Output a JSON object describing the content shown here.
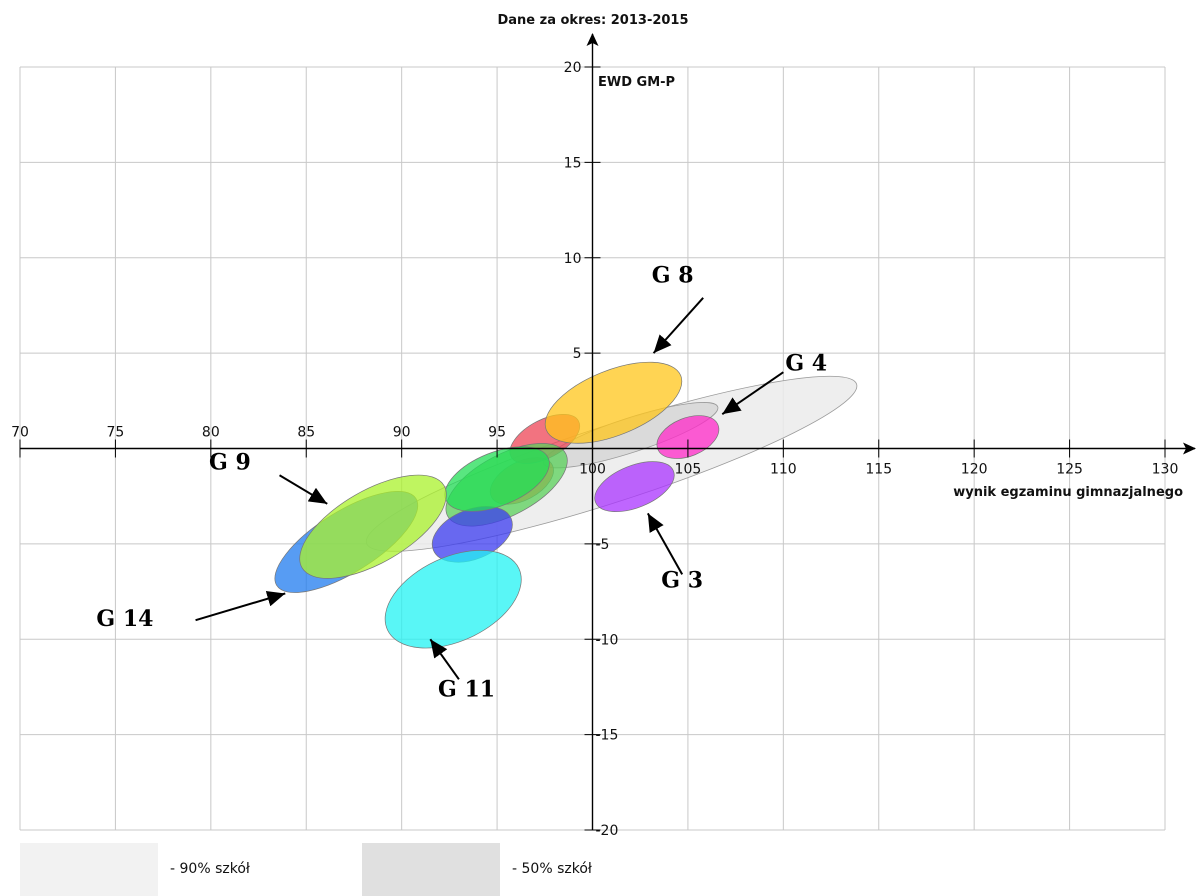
{
  "chart_data": {
    "type": "scatter",
    "title": "Dane za okres: 2013-2015",
    "xlabel": "wynik egzaminu gimnazjalnego",
    "ylabel": "EWD GM-P",
    "xlim": [
      70,
      130
    ],
    "ylim": [
      -20,
      20
    ],
    "x_ticks": [
      "70",
      "75",
      "80",
      "85",
      "90",
      "95",
      "100",
      "105",
      "110",
      "115",
      "120",
      "125",
      "130"
    ],
    "y_ticks": [
      "20",
      "15",
      "10",
      "5",
      "-5",
      "-10",
      "-15",
      "-20"
    ],
    "grid": true,
    "legend_position": "bottom-left",
    "legend": [
      {
        "label": "- 90% szkół",
        "color": "#f2f2f2"
      },
      {
        "label": "- 50% szkół",
        "color": "#e0e0e0"
      }
    ],
    "background_regions": [
      {
        "name": "90%",
        "cx": 101,
        "cy": -0.8,
        "rx": 13.5,
        "ry": 2.0,
        "angle_deg": 18,
        "color": "#ebebeb"
      },
      {
        "name": "50%",
        "cx": 102,
        "cy": 0.7,
        "rx": 4.8,
        "ry": 0.9,
        "angle_deg": 18,
        "color": "#d6d6d6"
      }
    ],
    "ellipses": [
      {
        "cx": 96.3,
        "cy": -1.7,
        "rx": 1.8,
        "ry": 1.0,
        "angle_deg": 28,
        "color": "#ff6a3d"
      },
      {
        "cx": 97.5,
        "cy": 0.5,
        "rx": 2.0,
        "ry": 1.0,
        "angle_deg": 28,
        "color": "#ee4455"
      },
      {
        "cx": 95.5,
        "cy": -1.9,
        "rx": 3.5,
        "ry": 1.6,
        "angle_deg": 28,
        "color": "#5ad05a"
      },
      {
        "cx": 93.7,
        "cy": -4.5,
        "rx": 2.2,
        "ry": 1.3,
        "angle_deg": 22,
        "color": "#3b3bf0"
      },
      {
        "cx": 95.0,
        "cy": -1.6,
        "rx": 2.9,
        "ry": 1.4,
        "angle_deg": 22,
        "color": "#22dd55"
      },
      {
        "cx": 87.1,
        "cy": -4.9,
        "rx": 4.3,
        "ry": 1.6,
        "angle_deg": 32,
        "color": "#1f7bef"
      },
      {
        "cx": 88.5,
        "cy": -4.1,
        "rx": 4.3,
        "ry": 1.9,
        "angle_deg": 30,
        "color": "#aaf22b"
      },
      {
        "cx": 92.7,
        "cy": -7.9,
        "rx": 3.8,
        "ry": 2.2,
        "angle_deg": 25,
        "color": "#21f3f3"
      },
      {
        "cx": 101.1,
        "cy": 2.4,
        "rx": 3.8,
        "ry": 1.7,
        "angle_deg": 22,
        "color": "#ffc619"
      },
      {
        "cx": 105.0,
        "cy": 0.6,
        "rx": 1.7,
        "ry": 1.0,
        "angle_deg": 22,
        "color": "#ff28c8"
      },
      {
        "cx": 102.2,
        "cy": -2.0,
        "rx": 2.2,
        "ry": 1.1,
        "angle_deg": 22,
        "color": "#a933ff"
      }
    ],
    "annotations": [
      {
        "label": "G 8",
        "x": 104.2,
        "y": 8.7,
        "arrow_from": [
          105.8,
          7.9
        ],
        "arrow_to": [
          103.2,
          5.0
        ]
      },
      {
        "label": "G 4",
        "x": 111.2,
        "y": 4.1,
        "arrow_from": [
          110.0,
          4.0
        ],
        "arrow_to": [
          106.8,
          1.8
        ]
      },
      {
        "label": "G 9",
        "x": 81.0,
        "y": -1.1,
        "arrow_from": [
          83.6,
          -1.4
        ],
        "arrow_to": [
          86.1,
          -2.9
        ]
      },
      {
        "label": "G 3",
        "x": 104.7,
        "y": -7.3,
        "arrow_from": [
          104.7,
          -6.6
        ],
        "arrow_to": [
          102.9,
          -3.4
        ]
      },
      {
        "label": "G 14",
        "x": 75.5,
        "y": -9.3,
        "arrow_from": [
          79.2,
          -9.0
        ],
        "arrow_to": [
          83.9,
          -7.6
        ]
      },
      {
        "label": "G 11",
        "x": 93.4,
        "y": -13.0,
        "arrow_from": [
          93.0,
          -12.1
        ],
        "arrow_to": [
          91.5,
          -10.0
        ]
      }
    ]
  }
}
